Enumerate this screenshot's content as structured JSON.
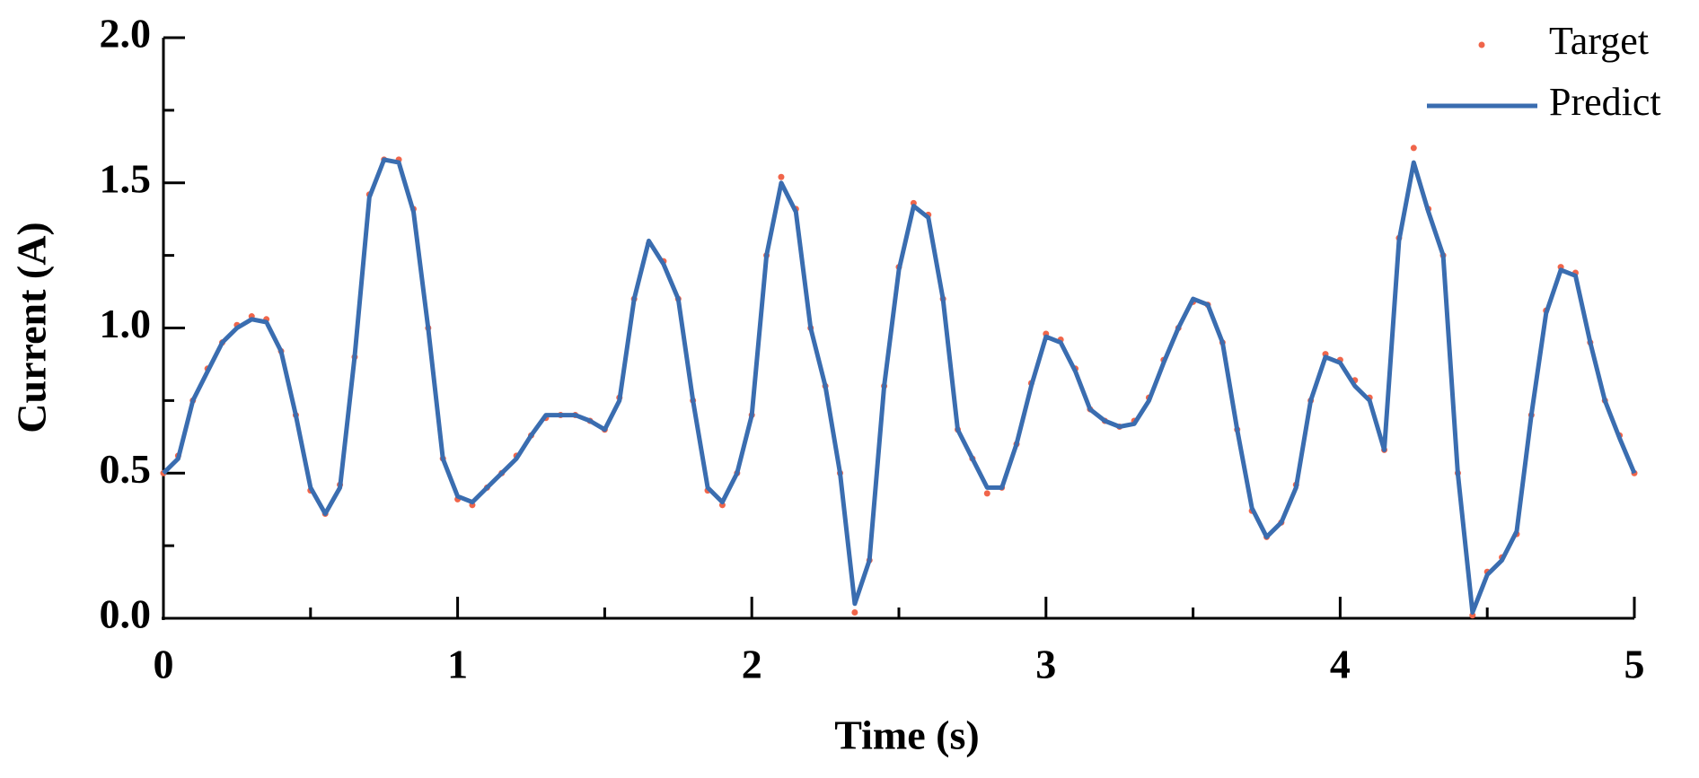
{
  "chart_data": {
    "type": "line",
    "xlabel": "Time (s)",
    "ylabel": "Current (A)",
    "xlim": [
      0,
      5
    ],
    "ylim": [
      0,
      2
    ],
    "xticks": [
      0,
      1,
      2,
      3,
      4,
      5
    ],
    "xminorticks": [
      0.5,
      1.5,
      2.5,
      3.5,
      4.5
    ],
    "yticks": [
      {
        "value": 0,
        "label": "0.0"
      },
      0.5,
      {
        "value": 1,
        "label": "1.0"
      },
      1.5,
      {
        "value": 2,
        "label": "2.0"
      }
    ],
    "yminorticks": [
      0.25,
      0.75,
      1.25,
      1.75
    ],
    "legend": "upper right",
    "x": [
      0,
      0.05,
      0.1,
      0.15,
      0.2,
      0.25,
      0.3,
      0.35,
      0.4,
      0.45,
      0.5,
      0.55,
      0.6,
      0.65,
      0.7,
      0.75,
      0.8,
      0.85,
      0.9,
      0.95,
      1,
      1.05,
      1.1,
      1.15,
      1.2,
      1.25,
      1.3,
      1.35,
      1.4,
      1.45,
      1.5,
      1.55,
      1.6,
      1.65,
      1.7,
      1.75,
      1.8,
      1.85,
      1.9,
      1.95,
      2,
      2.05,
      2.1,
      2.15,
      2.2,
      2.25,
      2.3,
      2.35,
      2.4,
      2.45,
      2.5,
      2.55,
      2.6,
      2.65,
      2.7,
      2.75,
      2.8,
      2.85,
      2.9,
      2.95,
      3,
      3.05,
      3.1,
      3.15,
      3.2,
      3.25,
      3.3,
      3.35,
      3.4,
      3.45,
      3.5,
      3.55,
      3.6,
      3.65,
      3.7,
      3.75,
      3.8,
      3.85,
      3.9,
      3.95,
      4,
      4.05,
      4.1,
      4.15,
      4.2,
      4.25,
      4.3,
      4.35,
      4.4,
      4.45,
      4.5,
      4.55,
      4.6,
      4.65,
      4.7,
      4.75,
      4.8,
      4.85,
      4.9,
      4.95,
      5
    ],
    "series": [
      {
        "name": "Target",
        "style": "dots",
        "color": "#f0654a",
        "values": [
          0.5,
          0.56,
          0.75,
          0.86,
          0.95,
          1.01,
          1.04,
          1.03,
          0.92,
          0.7,
          0.44,
          0.36,
          0.46,
          0.9,
          1.46,
          1.58,
          1.58,
          1.41,
          1.0,
          0.55,
          0.41,
          0.39,
          0.45,
          0.5,
          0.56,
          0.63,
          0.69,
          0.7,
          0.7,
          0.68,
          0.65,
          0.76,
          1.1,
          1.29,
          1.23,
          1.1,
          0.75,
          0.44,
          0.39,
          0.5,
          0.7,
          1.25,
          1.52,
          1.41,
          1.0,
          0.8,
          0.5,
          0.02,
          0.2,
          0.8,
          1.21,
          1.43,
          1.39,
          1.1,
          0.65,
          0.55,
          0.43,
          0.45,
          0.6,
          0.81,
          0.98,
          0.96,
          0.86,
          0.72,
          0.68,
          0.66,
          0.68,
          0.76,
          0.89,
          1.0,
          1.09,
          1.08,
          0.95,
          0.65,
          0.37,
          0.28,
          0.33,
          0.46,
          0.75,
          0.91,
          0.89,
          0.82,
          0.76,
          0.58,
          1.31,
          1.62,
          1.41,
          1.25,
          0.5,
          0.01,
          0.16,
          0.21,
          0.29,
          0.7,
          1.06,
          1.21,
          1.19,
          0.95,
          0.75,
          0.63,
          0.5
        ]
      },
      {
        "name": "Predict",
        "style": "line",
        "color": "#3a6db0",
        "values": [
          0.5,
          0.55,
          0.75,
          0.85,
          0.95,
          1.0,
          1.03,
          1.02,
          0.92,
          0.7,
          0.45,
          0.36,
          0.45,
          0.9,
          1.45,
          1.58,
          1.57,
          1.4,
          1.0,
          0.55,
          0.42,
          0.4,
          0.45,
          0.5,
          0.55,
          0.63,
          0.7,
          0.7,
          0.7,
          0.68,
          0.65,
          0.75,
          1.1,
          1.3,
          1.22,
          1.1,
          0.75,
          0.45,
          0.4,
          0.5,
          0.7,
          1.25,
          1.5,
          1.4,
          1.0,
          0.8,
          0.5,
          0.05,
          0.2,
          0.8,
          1.2,
          1.42,
          1.38,
          1.1,
          0.65,
          0.55,
          0.45,
          0.45,
          0.6,
          0.8,
          0.97,
          0.95,
          0.85,
          0.72,
          0.68,
          0.66,
          0.67,
          0.75,
          0.88,
          1.0,
          1.1,
          1.08,
          0.95,
          0.65,
          0.38,
          0.28,
          0.33,
          0.45,
          0.75,
          0.9,
          0.88,
          0.8,
          0.75,
          0.58,
          1.3,
          1.57,
          1.4,
          1.25,
          0.5,
          0.02,
          0.15,
          0.2,
          0.3,
          0.7,
          1.05,
          1.2,
          1.18,
          0.95,
          0.75,
          0.62,
          0.5
        ]
      }
    ]
  }
}
